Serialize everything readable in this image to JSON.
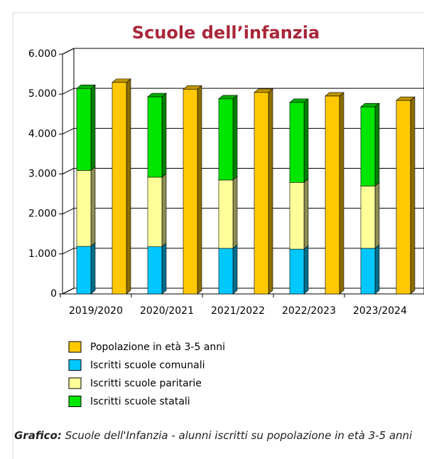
{
  "chart_data": {
    "type": "bar",
    "title": "Scuole dell’infanzia",
    "categories": [
      "2019/2020",
      "2020/2021",
      "2021/2022",
      "2022/2023",
      "2023/2024"
    ],
    "series": [
      {
        "name": "Popolazione in età 3-5 anni",
        "color": "#ffc800",
        "values": [
          5290,
          5120,
          5040,
          4950,
          4840
        ]
      },
      {
        "name": "Iscritti scuole comunali",
        "color": "#00c8ff",
        "values": [
          1190,
          1180,
          1140,
          1120,
          1140
        ]
      },
      {
        "name": "Iscritti scuole paritarie",
        "color": "#ffff99",
        "values": [
          1900,
          1740,
          1710,
          1670,
          1560
        ]
      },
      {
        "name": "Iscritti scuole statali",
        "color": "#00e600",
        "values": [
          2050,
          2010,
          2030,
          2000,
          1980
        ]
      }
    ],
    "ylim": [
      0,
      6000
    ],
    "yticks": [
      0,
      {
        "value": 1000,
        "label": "1.000"
      },
      {
        "value": 2000,
        "label": "2.000"
      },
      {
        "value": 3000,
        "label": "3.000"
      },
      {
        "value": 4000,
        "label": "4.000"
      },
      {
        "value": 5000,
        "label": "5.000"
      },
      {
        "value": 6000,
        "label": "6.000"
      }
    ],
    "grid": true,
    "caption_label": "Grafico:",
    "caption": "Scuole dell'Infanzia - alunni iscritti su popolazione in età 3-5 anni"
  }
}
